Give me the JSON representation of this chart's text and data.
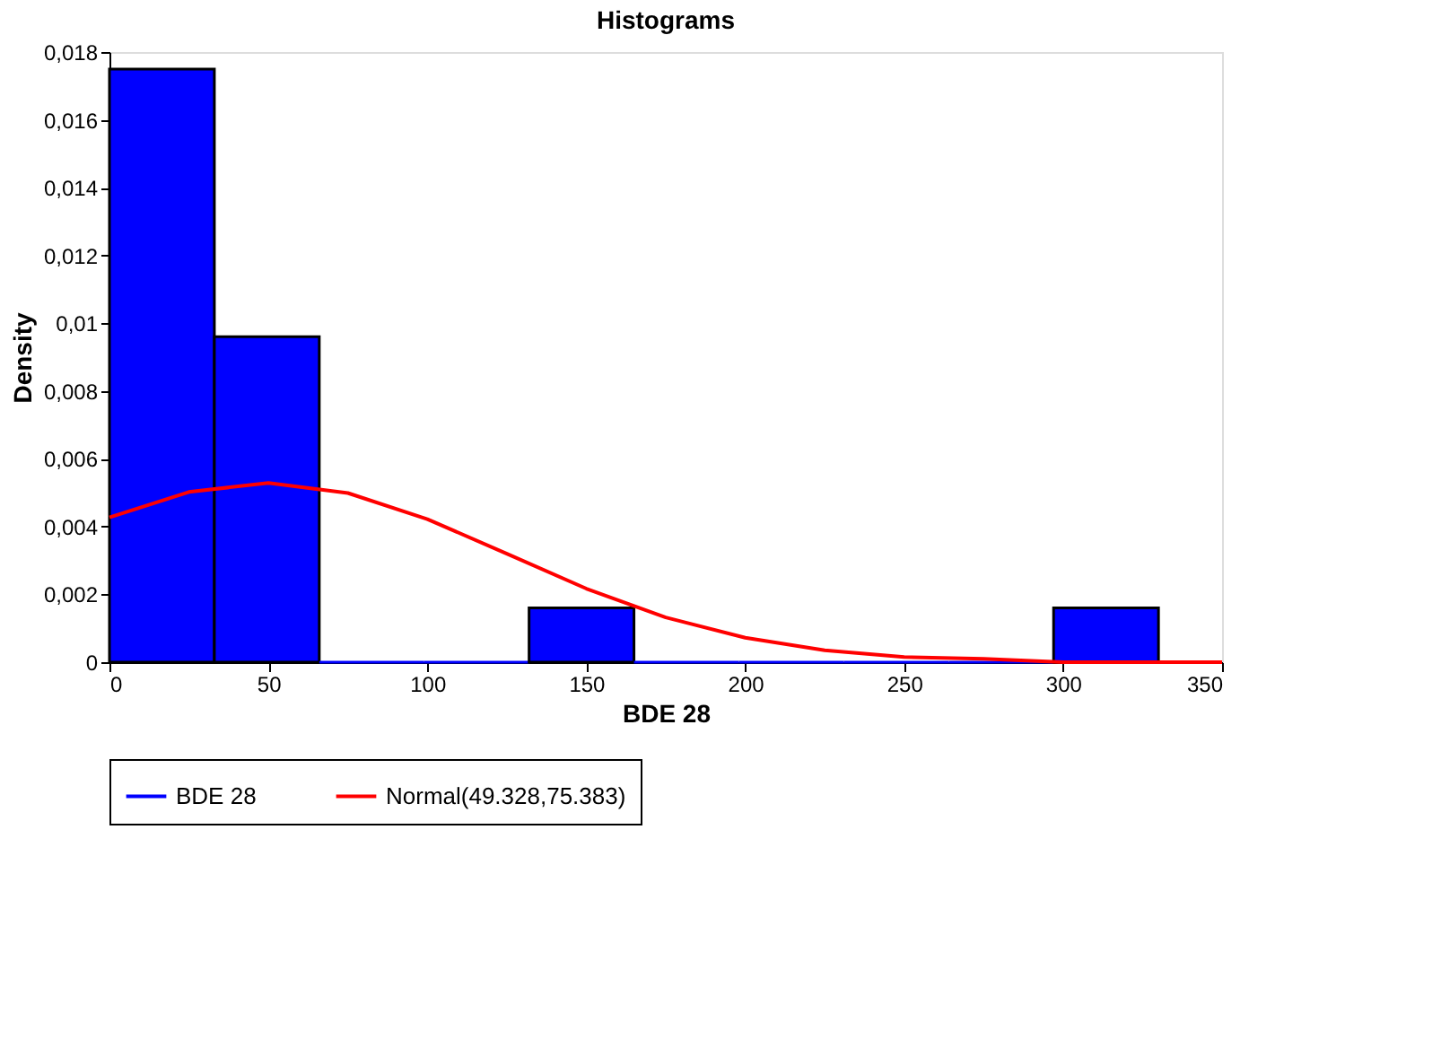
{
  "chart_data": {
    "type": "histogram",
    "title": "Histograms",
    "xlabel": "BDE 28",
    "ylabel": "Density",
    "bins": [
      0,
      33,
      66,
      99,
      132,
      165,
      198,
      231,
      264,
      297,
      330
    ],
    "series": [
      {
        "name": "BDE 28",
        "color": "#0000ff",
        "values": [
          0.0175,
          0.0096,
          0,
          0,
          0.0016,
          0,
          0,
          0,
          0,
          0.0016
        ]
      },
      {
        "name": "Normal(49.328,75.383)",
        "type": "line",
        "color": "#ff0000",
        "x": [
          0,
          25,
          50,
          75,
          100,
          125,
          150,
          175,
          200,
          225,
          250,
          275,
          300,
          325,
          350
        ],
        "values": [
          0.00427,
          0.00502,
          0.00529,
          0.00499,
          0.00422,
          0.0032,
          0.00217,
          0.00132,
          0.00072,
          0.00035,
          0.00015,
          0.0001,
          0,
          0,
          0
        ]
      }
    ],
    "xlim": [
      0,
      350
    ],
    "xticks": [
      0,
      50,
      100,
      150,
      200,
      250,
      300,
      350
    ],
    "ylim": [
      0,
      0.018
    ],
    "yticks": [
      {
        "value": 0,
        "label": "0"
      },
      {
        "value": 0.002,
        "label": "0,002"
      },
      {
        "value": 0.004,
        "label": "0,004"
      },
      {
        "value": 0.006,
        "label": "0,006"
      },
      {
        "value": 0.008,
        "label": "0,008"
      },
      {
        "value": 0.01,
        "label": "0,01"
      },
      {
        "value": 0.012,
        "label": "0,012"
      },
      {
        "value": 0.014,
        "label": "0,014"
      },
      {
        "value": 0.016,
        "label": "0,016"
      },
      {
        "value": 0.018,
        "label": "0,018"
      }
    ],
    "grid": false,
    "legend": "bottom"
  }
}
